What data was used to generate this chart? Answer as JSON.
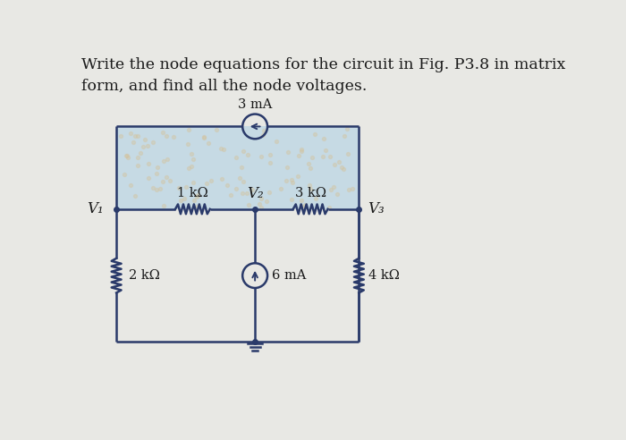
{
  "title_line1": "Write the node equations for the circuit in Fig. P3.8 in matrix",
  "title_line2": "form, and find all the node voltages.",
  "bg_color": "#e8e8e4",
  "inner_bg_color": "#b8d8e0",
  "wire_color": "#2a3a6a",
  "text_color": "#1a1a1a",
  "title_fontsize": 12.5,
  "label_fontsize": 11,
  "circuit": {
    "V1_label": "V₁",
    "V2_label": "V₂",
    "V3_label": "V₃",
    "R1_label": "1 kΩ",
    "R2_label": "3 kΩ",
    "R3_label": "2 kΩ",
    "R4_label": "4 kΩ",
    "I1_label": "3 mA",
    "I2_label": "6 mA"
  }
}
